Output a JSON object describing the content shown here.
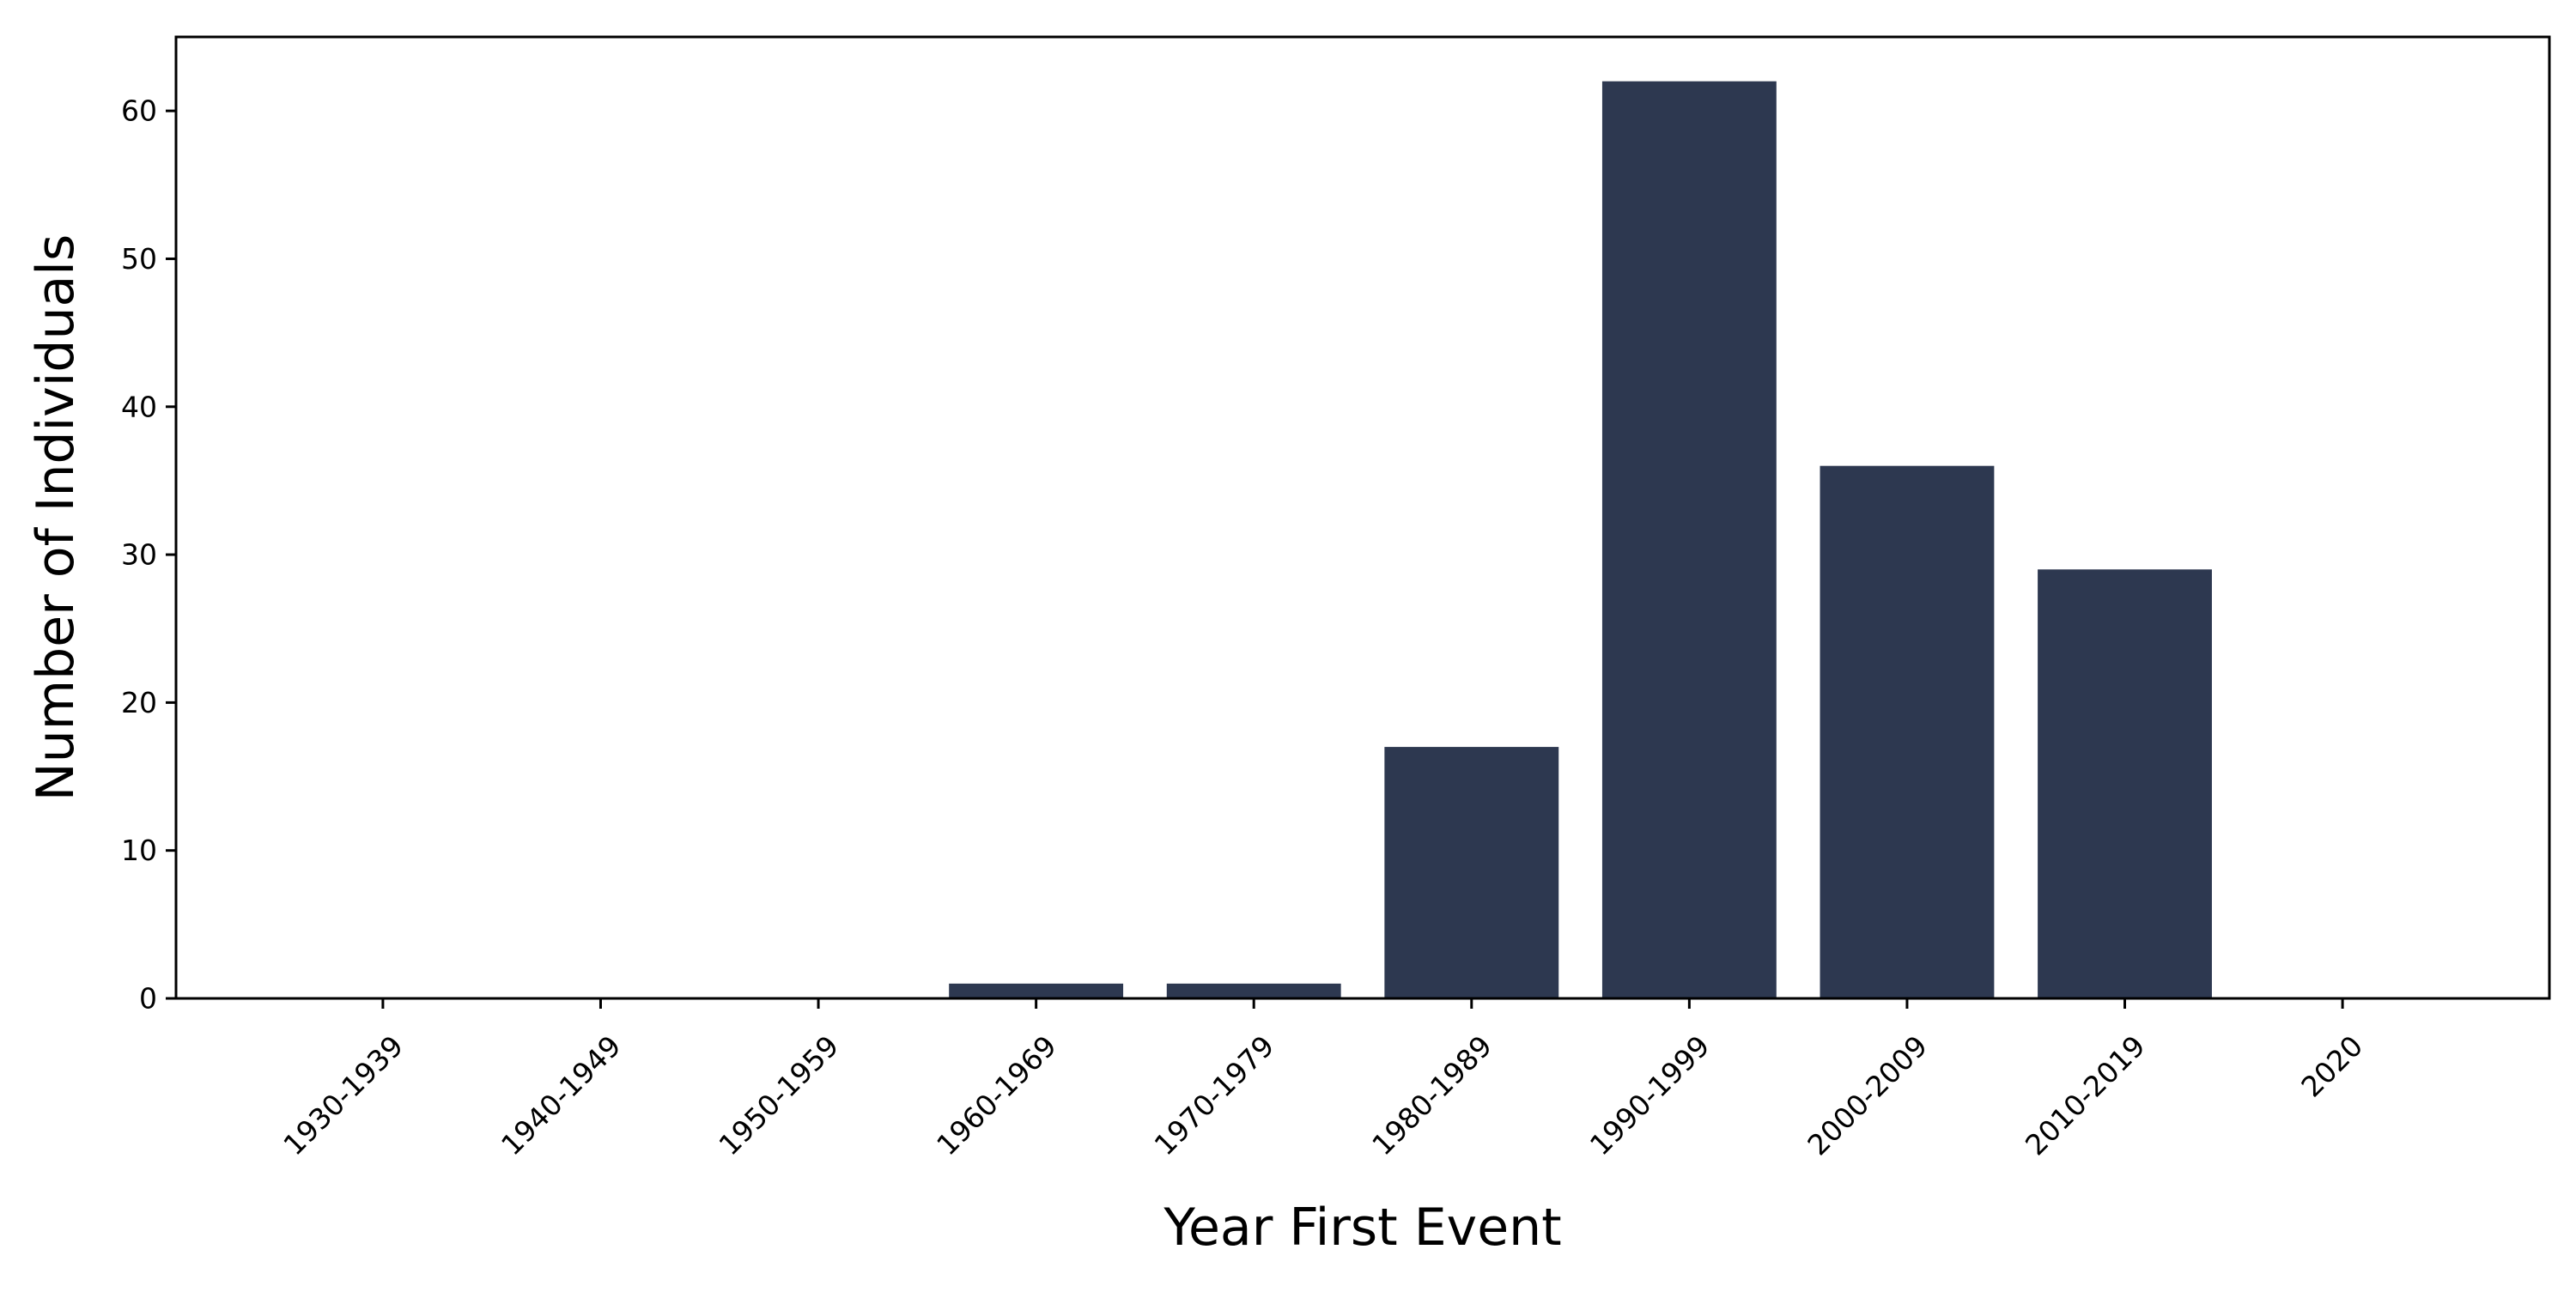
{
  "chart_data": {
    "type": "bar",
    "title": "",
    "xlabel": "Year First Event",
    "ylabel": "Number of Individuals",
    "categories": [
      "1930-1939",
      "1940-1949",
      "1950-1959",
      "1960-1969",
      "1970-1979",
      "1980-1989",
      "1990-1999",
      "2000-2009",
      "2010-2019",
      "2020"
    ],
    "values": [
      0,
      0,
      0,
      1,
      1,
      17,
      62,
      36,
      29,
      0
    ],
    "ylim": [
      0,
      65
    ],
    "yticks": [
      0,
      10,
      20,
      30,
      40,
      50,
      60
    ],
    "grid": false,
    "legend": "none",
    "colors": {
      "bar": "#2d3850",
      "axis": "#000000",
      "background": "#ffffff"
    }
  }
}
